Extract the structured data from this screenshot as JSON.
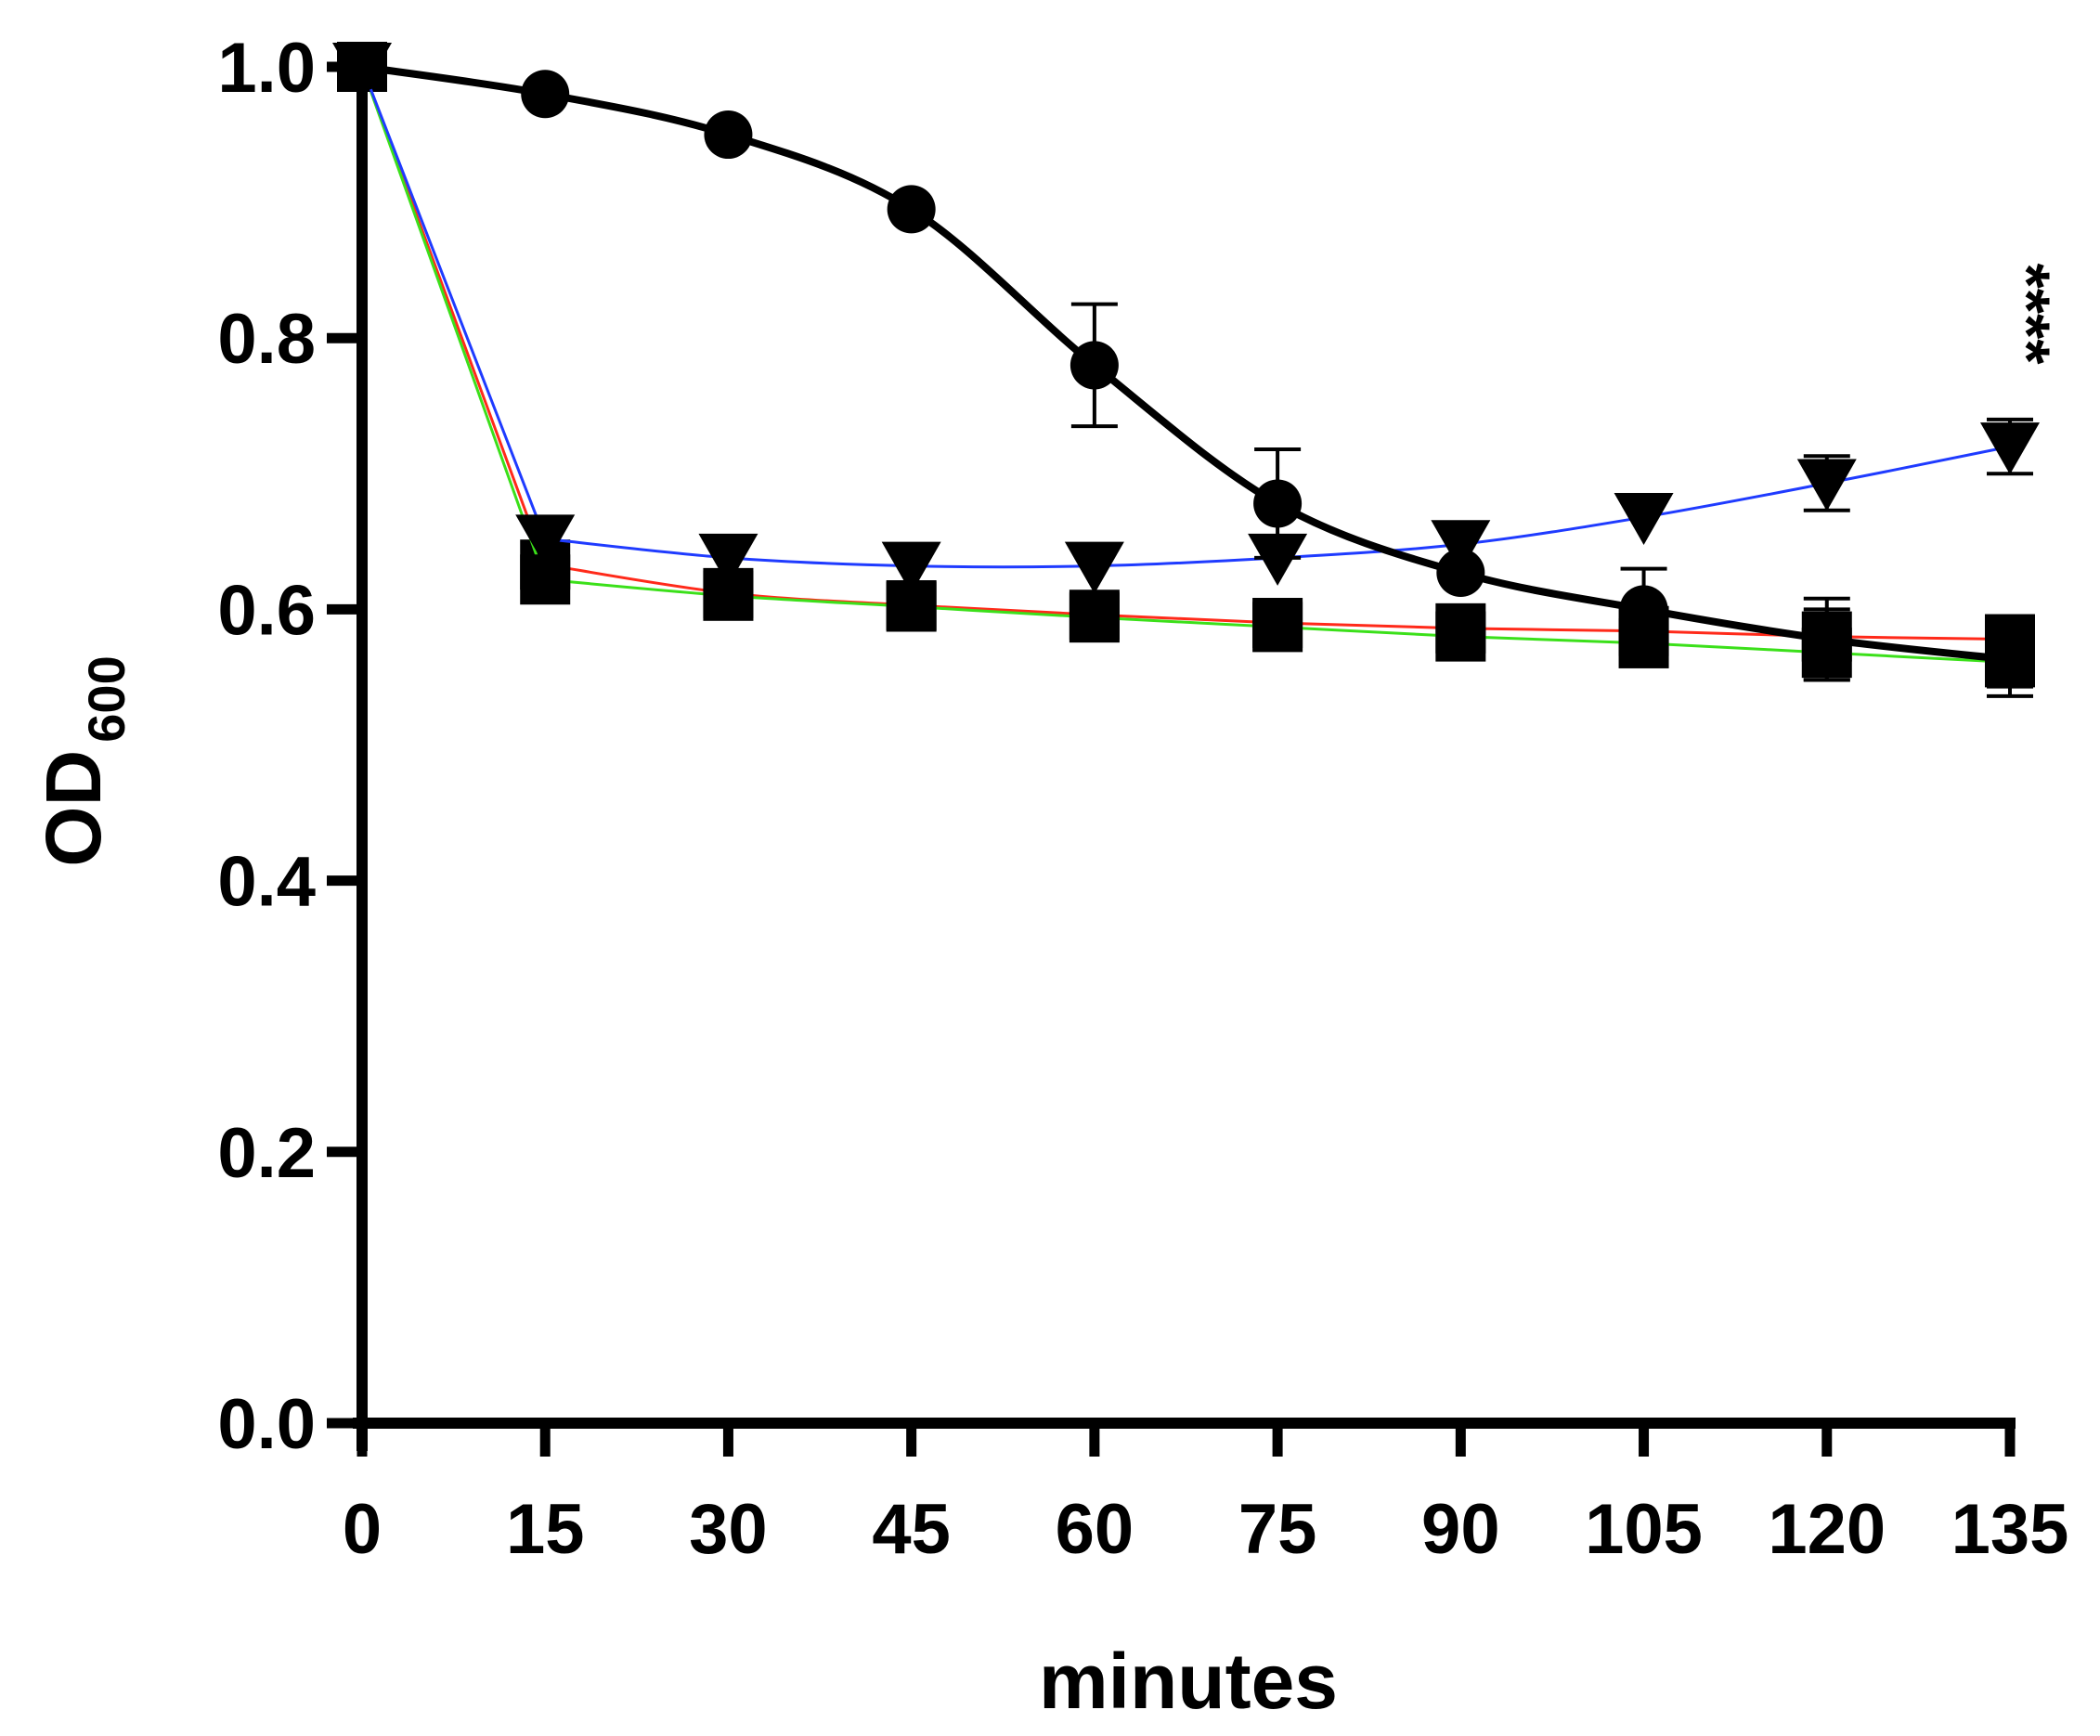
{
  "chart_data": {
    "type": "line",
    "title": "",
    "xlabel": "minutes",
    "ylabel": "OD",
    "ylabel_subscript": "600",
    "xlim": [
      0,
      135
    ],
    "ylim": [
      0.0,
      1.0
    ],
    "x": [
      0,
      15,
      30,
      45,
      60,
      75,
      90,
      105,
      120,
      135
    ],
    "x_ticks": [
      "0",
      "15",
      "30",
      "45",
      "60",
      "75",
      "90",
      "105",
      "120",
      "135"
    ],
    "y_ticks": [
      "0.0",
      "0.2",
      "0.4",
      "0.6",
      "0.8",
      "1.0"
    ],
    "y_tick_values": [
      0.0,
      0.2,
      0.4,
      0.6,
      0.8,
      1.0
    ],
    "grid": false,
    "annotation": "****",
    "series": [
      {
        "name": "circle-series",
        "color": "#000000",
        "marker": "circle",
        "values": [
          1.0,
          0.98,
          0.95,
          0.895,
          0.78,
          0.678,
          0.627,
          0.6,
          0.578,
          0.563
        ],
        "errors": [
          0,
          0,
          0,
          0,
          0.045,
          0.04,
          0,
          0.03,
          0.03,
          0.02
        ]
      },
      {
        "name": "triangle-series",
        "color": "#1f3bff",
        "marker": "triangle-down",
        "values": [
          1.0,
          0.652,
          0.638,
          0.632,
          0.632,
          0.638,
          0.648,
          0.668,
          0.693,
          0.72
        ],
        "errors": [
          0,
          0,
          0,
          0,
          0,
          0,
          0,
          0,
          0.02,
          0.02
        ]
      },
      {
        "name": "red-square-series",
        "color": "#ff2a1a",
        "marker": "square",
        "values": [
          1.0,
          0.633,
          0.612,
          0.603,
          0.596,
          0.59,
          0.586,
          0.584,
          0.58,
          0.578
        ],
        "errors": [
          0,
          0,
          0,
          0,
          0,
          0,
          0,
          0,
          0.02,
          0.015
        ]
      },
      {
        "name": "green-square-series",
        "color": "#3be01a",
        "marker": "square",
        "values": [
          1.0,
          0.622,
          0.61,
          0.602,
          0.594,
          0.587,
          0.58,
          0.575,
          0.568,
          0.561
        ],
        "errors": [
          0,
          0,
          0,
          0,
          0,
          0,
          0,
          0,
          0.02,
          0.025
        ]
      }
    ]
  }
}
